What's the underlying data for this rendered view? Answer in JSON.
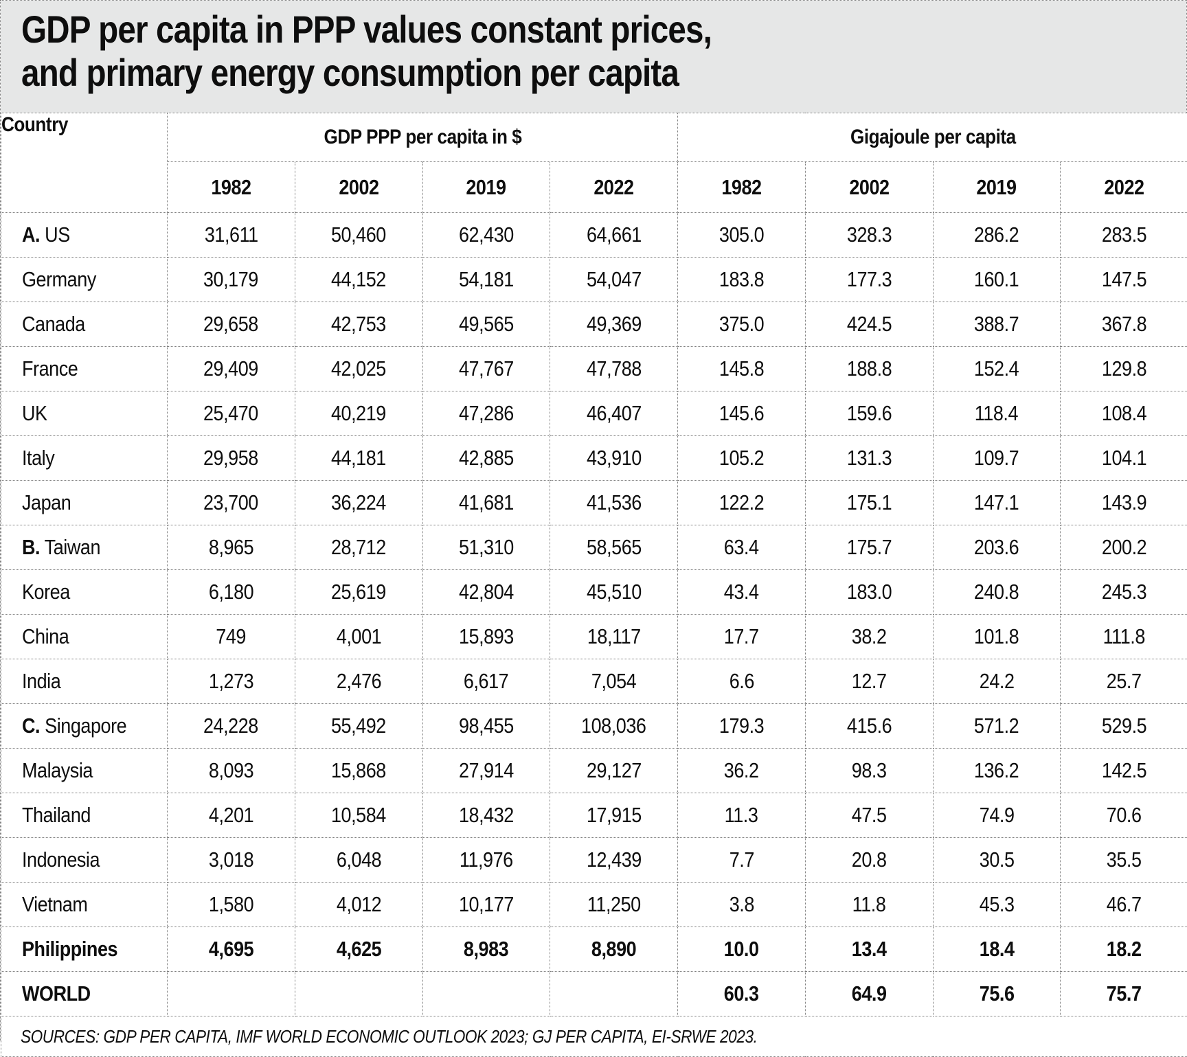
{
  "title": {
    "line1": "GDP per capita in PPP values constant prices,",
    "line2": "and primary energy consumption per capita"
  },
  "chart_data": {
    "type": "table",
    "title": "GDP per capita in PPP values constant prices, and primary energy consumption per capita",
    "columns": {
      "country_label": "Country",
      "groups": [
        {
          "label": "GDP PPP per capita in $",
          "years": [
            "1982",
            "2002",
            "2019",
            "2022"
          ]
        },
        {
          "label": "Gigajoule per capita",
          "years": [
            "1982",
            "2002",
            "2019",
            "2022"
          ]
        }
      ]
    },
    "rows": [
      {
        "prefix": "A.",
        "country": "US",
        "bold": false,
        "gdp": [
          "31,611",
          "50,460",
          "62,430",
          "64,661"
        ],
        "gj": [
          "305.0",
          "328.3",
          "286.2",
          "283.5"
        ]
      },
      {
        "prefix": "",
        "country": "Germany",
        "bold": false,
        "gdp": [
          "30,179",
          "44,152",
          "54,181",
          "54,047"
        ],
        "gj": [
          "183.8",
          "177.3",
          "160.1",
          "147.5"
        ]
      },
      {
        "prefix": "",
        "country": "Canada",
        "bold": false,
        "gdp": [
          "29,658",
          "42,753",
          "49,565",
          "49,369"
        ],
        "gj": [
          "375.0",
          "424.5",
          "388.7",
          "367.8"
        ]
      },
      {
        "prefix": "",
        "country": "France",
        "bold": false,
        "gdp": [
          "29,409",
          "42,025",
          "47,767",
          "47,788"
        ],
        "gj": [
          "145.8",
          "188.8",
          "152.4",
          "129.8"
        ]
      },
      {
        "prefix": "",
        "country": "UK",
        "bold": false,
        "gdp": [
          "25,470",
          "40,219",
          "47,286",
          "46,407"
        ],
        "gj": [
          "145.6",
          "159.6",
          "118.4",
          "108.4"
        ]
      },
      {
        "prefix": "",
        "country": "Italy",
        "bold": false,
        "gdp": [
          "29,958",
          "44,181",
          "42,885",
          "43,910"
        ],
        "gj": [
          "105.2",
          "131.3",
          "109.7",
          "104.1"
        ]
      },
      {
        "prefix": "",
        "country": "Japan",
        "bold": false,
        "gdp": [
          "23,700",
          "36,224",
          "41,681",
          "41,536"
        ],
        "gj": [
          "122.2",
          "175.1",
          "147.1",
          "143.9"
        ]
      },
      {
        "prefix": "B.",
        "country": "Taiwan",
        "bold": false,
        "gdp": [
          "8,965",
          "28,712",
          "51,310",
          "58,565"
        ],
        "gj": [
          "63.4",
          "175.7",
          "203.6",
          "200.2"
        ]
      },
      {
        "prefix": "",
        "country": "Korea",
        "bold": false,
        "gdp": [
          "6,180",
          "25,619",
          "42,804",
          "45,510"
        ],
        "gj": [
          "43.4",
          "183.0",
          "240.8",
          "245.3"
        ]
      },
      {
        "prefix": "",
        "country": "China",
        "bold": false,
        "gdp": [
          "749",
          "4,001",
          "15,893",
          "18,117"
        ],
        "gj": [
          "17.7",
          "38.2",
          "101.8",
          "111.8"
        ]
      },
      {
        "prefix": "",
        "country": "India",
        "bold": false,
        "gdp": [
          "1,273",
          "2,476",
          "6,617",
          "7,054"
        ],
        "gj": [
          "6.6",
          "12.7",
          "24.2",
          "25.7"
        ]
      },
      {
        "prefix": "C.",
        "country": "Singapore",
        "bold": false,
        "gdp": [
          "24,228",
          "55,492",
          "98,455",
          "108,036"
        ],
        "gj": [
          "179.3",
          "415.6",
          "571.2",
          "529.5"
        ]
      },
      {
        "prefix": "",
        "country": "Malaysia",
        "bold": false,
        "gdp": [
          "8,093",
          "15,868",
          "27,914",
          "29,127"
        ],
        "gj": [
          "36.2",
          "98.3",
          "136.2",
          "142.5"
        ]
      },
      {
        "prefix": "",
        "country": "Thailand",
        "bold": false,
        "gdp": [
          "4,201",
          "10,584",
          "18,432",
          "17,915"
        ],
        "gj": [
          "11.3",
          "47.5",
          "74.9",
          "70.6"
        ]
      },
      {
        "prefix": "",
        "country": "Indonesia",
        "bold": false,
        "gdp": [
          "3,018",
          "6,048",
          "11,976",
          "12,439"
        ],
        "gj": [
          "7.7",
          "20.8",
          "30.5",
          "35.5"
        ]
      },
      {
        "prefix": "",
        "country": "Vietnam",
        "bold": false,
        "gdp": [
          "1,580",
          "4,012",
          "10,177",
          "11,250"
        ],
        "gj": [
          "3.8",
          "11.8",
          "45.3",
          "46.7"
        ]
      },
      {
        "prefix": "",
        "country": "Philippines",
        "bold": true,
        "gdp": [
          "4,695",
          "4,625",
          "8,983",
          "8,890"
        ],
        "gj": [
          "10.0",
          "13.4",
          "18.4",
          "18.2"
        ]
      },
      {
        "prefix": "",
        "country": "WORLD",
        "bold": true,
        "gdp": [
          "",
          "",
          "",
          ""
        ],
        "gj": [
          "60.3",
          "64.9",
          "75.6",
          "75.7"
        ]
      }
    ],
    "source_note": "SOURCES: GDP PER CAPITA, IMF WORLD ECONOMIC OUTLOOK 2023; GJ PER CAPITA, EI-SRWE 2023."
  },
  "colors": {
    "title_background": "#e6e7e7",
    "table_background": "#ffffff",
    "border": "#7f7f7f",
    "text": "#0e0e0e"
  }
}
